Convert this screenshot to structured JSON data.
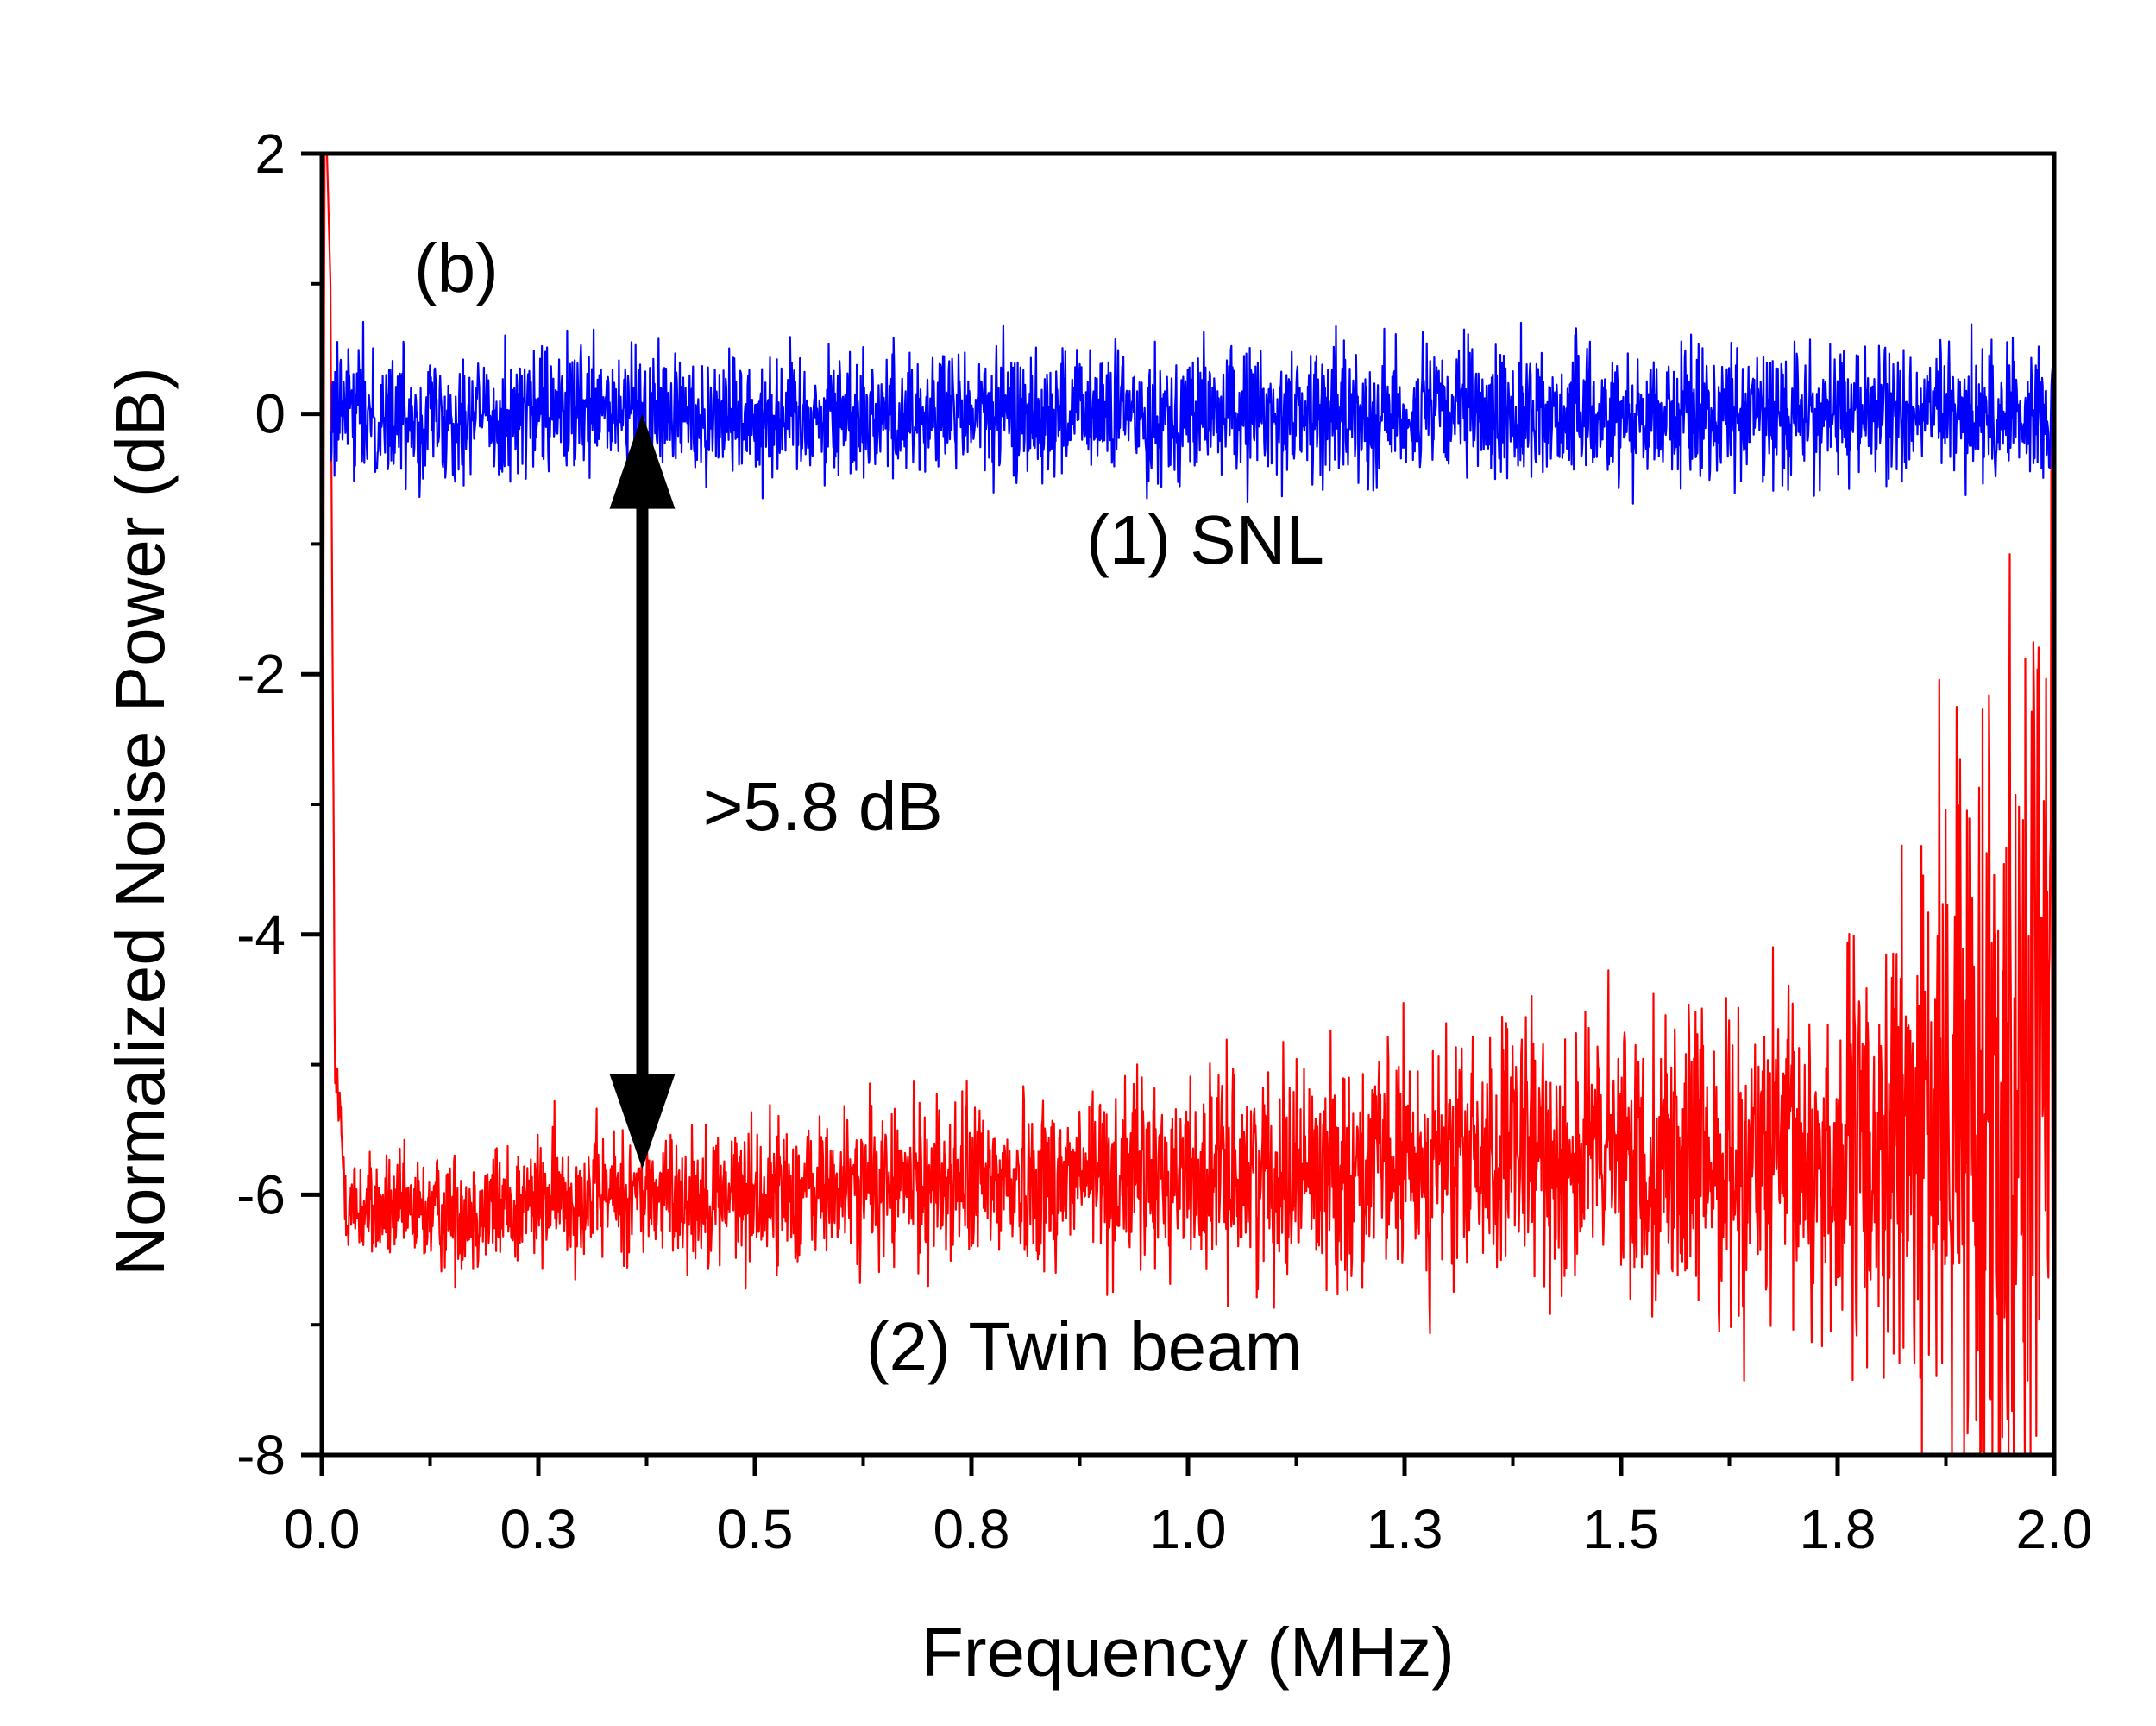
{
  "chart_data": {
    "type": "line",
    "panel_label": "(b)",
    "xlabel": "Frequency (MHz)",
    "ylabel": "Normalized Noise Power (dB)",
    "xlim": [
      0.0,
      2.0
    ],
    "ylim": [
      -8,
      2
    ],
    "x_ticks": [
      0.0,
      0.25,
      0.5,
      0.75,
      1.0,
      1.25,
      1.5,
      1.75,
      2.0
    ],
    "x_tick_labels": [
      "0.0",
      "0.3",
      "0.5",
      "0.8",
      "1.0",
      "1.3",
      "1.5",
      "1.8",
      "2.0"
    ],
    "y_ticks": [
      2,
      0,
      -2,
      -4,
      -6,
      -8
    ],
    "y_tick_labels": [
      "2",
      "0",
      "-2",
      "-4",
      "-6",
      "-8"
    ],
    "grid": false,
    "series": [
      {
        "label": "(1) SNL",
        "color": "#0000ff",
        "x": [
          0.01,
          0.2,
          0.4,
          0.6,
          0.8,
          1.0,
          1.2,
          1.4,
          1.6,
          1.8,
          2.0
        ],
        "y": [
          0.0,
          0.0,
          0.0,
          0.0,
          0.0,
          0.0,
          0.0,
          0.0,
          0.0,
          0.0,
          0.0
        ],
        "noise_amplitude_db": 0.35
      },
      {
        "label": "(2) Twin beam",
        "color": "#ff0000",
        "x": [
          0.0,
          0.003,
          0.006,
          0.01,
          0.015,
          0.03,
          0.1,
          0.2,
          0.3,
          0.4,
          0.5,
          0.6,
          0.7,
          0.8,
          0.9,
          1.0,
          1.1,
          1.2,
          1.3,
          1.4,
          1.5,
          1.6,
          1.7,
          1.75,
          1.8,
          1.85,
          1.9,
          1.95,
          2.0
        ],
        "y": [
          -8,
          2,
          2,
          1.0,
          -5.0,
          -6.1,
          -6.15,
          -6.1,
          -6.0,
          -6.0,
          -6.0,
          -5.95,
          -5.9,
          -5.9,
          -5.85,
          -5.85,
          -5.8,
          -5.8,
          -5.75,
          -5.7,
          -5.7,
          -5.75,
          -5.75,
          -5.75,
          -5.7,
          -5.5,
          -5.3,
          -5.0,
          -4.5
        ],
        "noise_amplitude_db": [
          0,
          0,
          0,
          0,
          0.3,
          0.3,
          0.3,
          0.35,
          0.35,
          0.35,
          0.4,
          0.4,
          0.45,
          0.45,
          0.5,
          0.5,
          0.55,
          0.6,
          0.65,
          0.7,
          0.75,
          0.8,
          0.9,
          1.0,
          1.2,
          1.6,
          2.0,
          2.5,
          3.0
        ]
      }
    ],
    "annotations": [
      {
        "text": "(1) SNL",
        "x": 1.02,
        "y": -1.15
      },
      {
        "text": "(2) Twin beam",
        "x": 0.88,
        "y": -7.35
      },
      {
        "text": ">5.8 dB",
        "x": 0.44,
        "y": -3.2
      }
    ],
    "arrow": {
      "x": 0.37,
      "y_from": 0.0,
      "y_to": -5.8,
      "color": "#000000",
      "style": "double-headed"
    }
  }
}
